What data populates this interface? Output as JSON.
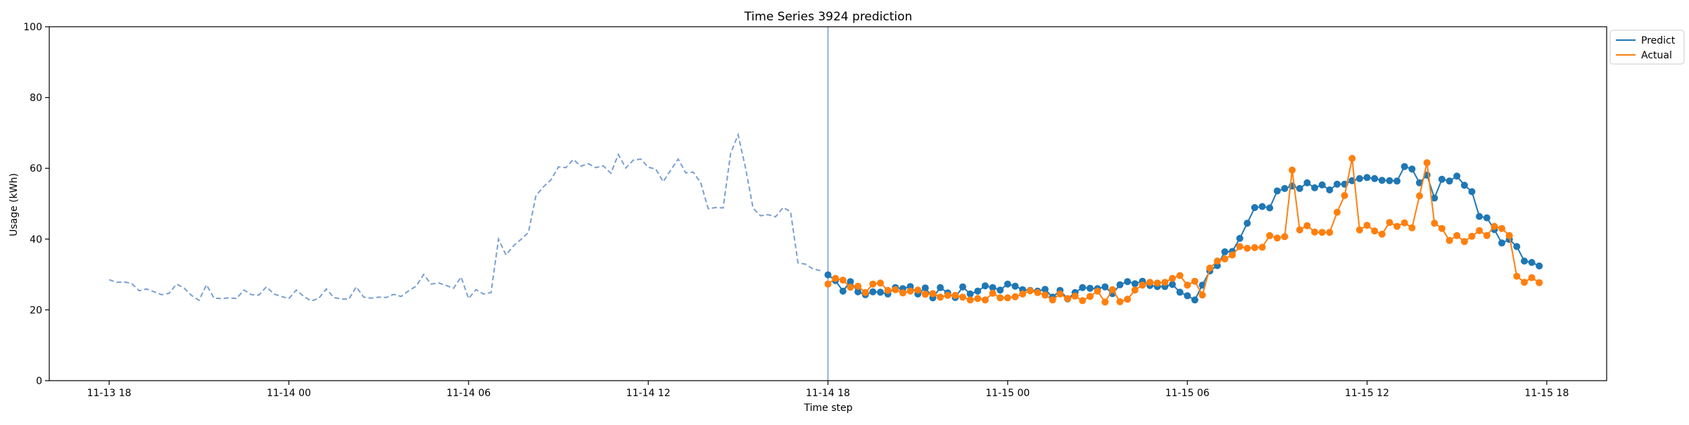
{
  "chart_data": {
    "type": "line",
    "title": "Time Series 3924 prediction",
    "xlabel": "Time step",
    "ylabel": "Usage (kWh)",
    "ylim": [
      0,
      100
    ],
    "yticks": [
      "0",
      "20",
      "40",
      "60",
      "80",
      "100"
    ],
    "xlim": [
      "2023-11-13T16:00",
      "2023-11-15T20:00"
    ],
    "xticks": [
      {
        "x": "2023-11-13T18:00",
        "label": "11-13 18"
      },
      {
        "x": "2023-11-14T00:00",
        "label": "11-14 00"
      },
      {
        "x": "2023-11-14T06:00",
        "label": "11-14 06"
      },
      {
        "x": "2023-11-14T12:00",
        "label": "11-14 12"
      },
      {
        "x": "2023-11-14T18:00",
        "label": "11-14 18"
      },
      {
        "x": "2023-11-15T00:00",
        "label": "11-15 00"
      },
      {
        "x": "2023-11-15T06:00",
        "label": "11-15 06"
      },
      {
        "x": "2023-11-15T12:00",
        "label": "11-15 12"
      },
      {
        "x": "2023-11-15T18:00",
        "label": "11-15 18"
      }
    ],
    "grid": false,
    "legend_position": "outside-top-right",
    "cutoff_x": "2023-11-14T18:00",
    "interval_minutes": 15,
    "history": {
      "start": "2023-11-13T18:00",
      "color": "#7b9fd0",
      "style": "dashed",
      "values": [
        28.5,
        27.8,
        27.9,
        27.5,
        25.4,
        25.9,
        25.1,
        24.3,
        24.7,
        27.3,
        26.2,
        24.1,
        22.7,
        27.1,
        23.3,
        23.2,
        23.4,
        23.2,
        25.6,
        24.3,
        24.2,
        26.5,
        24.5,
        23.8,
        23.2,
        25.6,
        23.8,
        22.5,
        23.3,
        25.9,
        23.5,
        23.1,
        23.0,
        26.5,
        23.6,
        23.3,
        23.6,
        23.5,
        24.4,
        23.8,
        25.4,
        26.7,
        30.0,
        27.3,
        27.6,
        26.9,
        26.1,
        29.3,
        23.2,
        25.7,
        24.5,
        24.9,
        40.0,
        35.5,
        38.1,
        39.9,
        41.9,
        52.3,
        54.8,
        56.7,
        60.4,
        60.2,
        62.5,
        60.6,
        61.3,
        60.2,
        60.7,
        58.6,
        63.9,
        60.1,
        62.3,
        62.6,
        60.3,
        59.8,
        56.2,
        59.5,
        62.6,
        58.7,
        58.9,
        56.0,
        48.6,
        48.9,
        48.8,
        64.2,
        69.5,
        60.0,
        48.7,
        46.6,
        46.9,
        46.3,
        48.9,
        47.8,
        33.3,
        32.9,
        31.6,
        31.1
      ]
    },
    "series": [
      {
        "name": "Predict",
        "color": "#1f77b4",
        "start": "2023-11-14T18:00",
        "values": [
          29.9,
          28.3,
          25.3,
          28.0,
          25.1,
          24.3,
          25.1,
          25.0,
          24.5,
          26.3,
          26.0,
          26.6,
          24.5,
          26.2,
          23.4,
          26.3,
          24.8,
          23.5,
          26.5,
          24.5,
          25.3,
          26.8,
          26.3,
          25.6,
          27.3,
          26.7,
          25.7,
          25.5,
          25.3,
          25.8,
          23.6,
          25.5,
          23.1,
          24.9,
          26.3,
          26.1,
          26.0,
          26.5,
          24.6,
          27.1,
          28.0,
          27.4,
          28.1,
          26.9,
          26.6,
          26.6,
          27.2,
          25.0,
          24.0,
          22.8,
          27.0,
          31.0,
          32.5,
          36.4,
          36.5,
          40.2,
          44.5,
          48.9,
          49.2,
          48.8,
          53.6,
          54.3,
          55.0,
          54.3,
          55.9,
          54.5,
          55.3,
          53.9,
          55.5,
          55.5,
          56.5,
          57.1,
          57.4,
          57.1,
          56.6,
          56.5,
          56.4,
          60.5,
          59.8,
          55.9,
          58.1,
          51.6,
          56.9,
          56.4,
          57.8,
          55.2,
          53.4,
          46.4,
          46.0,
          42.7,
          38.9,
          39.9,
          37.9,
          33.8,
          33.4,
          32.4
        ]
      },
      {
        "name": "Actual",
        "color": "#ff7f0e",
        "start": "2023-11-14T18:00",
        "values": [
          27.3,
          28.9,
          28.4,
          26.4,
          26.7,
          24.9,
          27.3,
          27.6,
          25.5,
          25.7,
          24.8,
          25.3,
          25.6,
          24.4,
          24.6,
          23.6,
          24.1,
          24.1,
          23.6,
          22.8,
          23.2,
          22.8,
          24.7,
          23.4,
          23.4,
          23.7,
          24.5,
          25.4,
          24.9,
          24.2,
          22.8,
          24.5,
          23.2,
          23.9,
          22.6,
          23.8,
          25.3,
          22.2,
          25.7,
          22.3,
          23.0,
          25.6,
          27.0,
          27.8,
          27.6,
          27.8,
          28.9,
          29.7,
          27.0,
          28.1,
          24.2,
          31.8,
          33.8,
          34.4,
          35.5,
          37.9,
          37.4,
          37.6,
          37.7,
          41.0,
          40.3,
          40.7,
          59.5,
          42.6,
          43.8,
          42.0,
          41.9,
          41.9,
          47.6,
          52.3,
          62.8,
          42.6,
          43.9,
          42.3,
          41.4,
          44.7,
          43.6,
          44.6,
          43.2,
          52.2,
          61.6,
          44.5,
          43.0,
          39.6,
          41.0,
          39.3,
          40.8,
          42.4,
          41.0,
          43.6,
          43.0,
          41.0,
          29.5,
          27.8,
          29.1,
          27.7
        ]
      }
    ]
  }
}
